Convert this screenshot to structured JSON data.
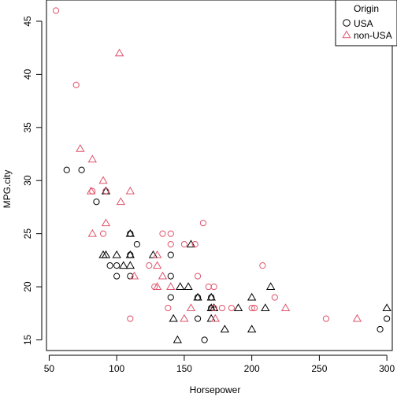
{
  "chart_data": {
    "type": "scatter",
    "title": "",
    "xlabel": "Horsepower",
    "ylabel": "MPG.city",
    "xlim": [
      48,
      304
    ],
    "ylim": [
      14,
      47
    ],
    "xticks": [
      50,
      100,
      150,
      200,
      250,
      300
    ],
    "yticks": [
      15,
      20,
      25,
      30,
      35,
      40,
      45
    ],
    "grid": false,
    "legend": {
      "title": "Origin",
      "placement": "top-right",
      "entries": [
        {
          "label": "USA",
          "marker": "circle",
          "color": "#000000"
        },
        {
          "label": "non-USA",
          "marker": "triangle",
          "color": "#DF536B"
        }
      ]
    },
    "series": [
      {
        "name": "USA",
        "color": "#000000",
        "points": [
          {
            "x": 63,
            "y": 31,
            "m": "circle"
          },
          {
            "x": 74,
            "y": 31,
            "m": "circle"
          },
          {
            "x": 85,
            "y": 28,
            "m": "circle"
          },
          {
            "x": 92,
            "y": 29,
            "m": "circle"
          },
          {
            "x": 92,
            "y": 29,
            "m": "triangle"
          },
          {
            "x": 90,
            "y": 23,
            "m": "triangle"
          },
          {
            "x": 92,
            "y": 23,
            "m": "triangle"
          },
          {
            "x": 95,
            "y": 22,
            "m": "circle"
          },
          {
            "x": 100,
            "y": 21,
            "m": "circle"
          },
          {
            "x": 100,
            "y": 22,
            "m": "circle"
          },
          {
            "x": 100,
            "y": 23,
            "m": "triangle"
          },
          {
            "x": 105,
            "y": 22,
            "m": "triangle"
          },
          {
            "x": 110,
            "y": 25,
            "m": "circle"
          },
          {
            "x": 110,
            "y": 25,
            "m": "triangle"
          },
          {
            "x": 110,
            "y": 23,
            "m": "circle"
          },
          {
            "x": 110,
            "y": 23,
            "m": "triangle"
          },
          {
            "x": 110,
            "y": 22,
            "m": "triangle"
          },
          {
            "x": 110,
            "y": 21,
            "m": "circle"
          },
          {
            "x": 115,
            "y": 24,
            "m": "circle"
          },
          {
            "x": 127,
            "y": 23,
            "m": "triangle"
          },
          {
            "x": 140,
            "y": 23,
            "m": "circle"
          },
          {
            "x": 140,
            "y": 21,
            "m": "circle"
          },
          {
            "x": 140,
            "y": 19,
            "m": "circle"
          },
          {
            "x": 142,
            "y": 17,
            "m": "triangle"
          },
          {
            "x": 145,
            "y": 15,
            "m": "triangle"
          },
          {
            "x": 147,
            "y": 20,
            "m": "triangle"
          },
          {
            "x": 153,
            "y": 20,
            "m": "triangle"
          },
          {
            "x": 155,
            "y": 24,
            "m": "triangle"
          },
          {
            "x": 160,
            "y": 19,
            "m": "triangle"
          },
          {
            "x": 160,
            "y": 19,
            "m": "circle"
          },
          {
            "x": 160,
            "y": 17,
            "m": "circle"
          },
          {
            "x": 165,
            "y": 15,
            "m": "circle"
          },
          {
            "x": 170,
            "y": 19,
            "m": "circle"
          },
          {
            "x": 170,
            "y": 19,
            "m": "triangle"
          },
          {
            "x": 170,
            "y": 18,
            "m": "triangle"
          },
          {
            "x": 170,
            "y": 18,
            "m": "circle"
          },
          {
            "x": 170,
            "y": 17,
            "m": "triangle"
          },
          {
            "x": 172,
            "y": 18,
            "m": "triangle"
          },
          {
            "x": 180,
            "y": 16,
            "m": "triangle"
          },
          {
            "x": 190,
            "y": 18,
            "m": "triangle"
          },
          {
            "x": 200,
            "y": 19,
            "m": "triangle"
          },
          {
            "x": 200,
            "y": 16,
            "m": "triangle"
          },
          {
            "x": 210,
            "y": 18,
            "m": "triangle"
          },
          {
            "x": 214,
            "y": 20,
            "m": "triangle"
          },
          {
            "x": 295,
            "y": 16,
            "m": "circle"
          },
          {
            "x": 300,
            "y": 17,
            "m": "circle"
          },
          {
            "x": 300,
            "y": 18,
            "m": "triangle"
          }
        ]
      },
      {
        "name": "non-USA",
        "color": "#DF536B",
        "points": [
          {
            "x": 55,
            "y": 46,
            "m": "circle"
          },
          {
            "x": 70,
            "y": 39,
            "m": "circle"
          },
          {
            "x": 102,
            "y": 42,
            "m": "triangle"
          },
          {
            "x": 73,
            "y": 33,
            "m": "triangle"
          },
          {
            "x": 82,
            "y": 32,
            "m": "triangle"
          },
          {
            "x": 82,
            "y": 29,
            "m": "circle"
          },
          {
            "x": 81,
            "y": 29,
            "m": "triangle"
          },
          {
            "x": 82,
            "y": 25,
            "m": "triangle"
          },
          {
            "x": 90,
            "y": 30,
            "m": "triangle"
          },
          {
            "x": 92,
            "y": 29,
            "m": "circle"
          },
          {
            "x": 92,
            "y": 26,
            "m": "triangle"
          },
          {
            "x": 90,
            "y": 25,
            "m": "circle"
          },
          {
            "x": 103,
            "y": 28,
            "m": "triangle"
          },
          {
            "x": 110,
            "y": 29,
            "m": "triangle"
          },
          {
            "x": 110,
            "y": 17,
            "m": "circle"
          },
          {
            "x": 113,
            "y": 21,
            "m": "triangle"
          },
          {
            "x": 124,
            "y": 22,
            "m": "circle"
          },
          {
            "x": 128,
            "y": 20,
            "m": "circle"
          },
          {
            "x": 130,
            "y": 23,
            "m": "triangle"
          },
          {
            "x": 130,
            "y": 20,
            "m": "triangle"
          },
          {
            "x": 130,
            "y": 22,
            "m": "triangle"
          },
          {
            "x": 134,
            "y": 25,
            "m": "circle"
          },
          {
            "x": 134,
            "y": 21,
            "m": "triangle"
          },
          {
            "x": 138,
            "y": 18,
            "m": "circle"
          },
          {
            "x": 140,
            "y": 25,
            "m": "circle"
          },
          {
            "x": 140,
            "y": 24,
            "m": "circle"
          },
          {
            "x": 140,
            "y": 20,
            "m": "triangle"
          },
          {
            "x": 150,
            "y": 24,
            "m": "circle"
          },
          {
            "x": 150,
            "y": 17,
            "m": "triangle"
          },
          {
            "x": 155,
            "y": 18,
            "m": "triangle"
          },
          {
            "x": 158,
            "y": 24,
            "m": "circle"
          },
          {
            "x": 160,
            "y": 21,
            "m": "circle"
          },
          {
            "x": 164,
            "y": 26,
            "m": "circle"
          },
          {
            "x": 168,
            "y": 20,
            "m": "circle"
          },
          {
            "x": 172,
            "y": 20,
            "m": "circle"
          },
          {
            "x": 172,
            "y": 18,
            "m": "circle"
          },
          {
            "x": 173,
            "y": 17,
            "m": "triangle"
          },
          {
            "x": 178,
            "y": 18,
            "m": "circle"
          },
          {
            "x": 185,
            "y": 18,
            "m": "circle"
          },
          {
            "x": 200,
            "y": 18,
            "m": "circle"
          },
          {
            "x": 202,
            "y": 18,
            "m": "circle"
          },
          {
            "x": 208,
            "y": 22,
            "m": "circle"
          },
          {
            "x": 217,
            "y": 19,
            "m": "circle"
          },
          {
            "x": 225,
            "y": 18,
            "m": "triangle"
          },
          {
            "x": 255,
            "y": 17,
            "m": "circle"
          },
          {
            "x": 278,
            "y": 17,
            "m": "triangle"
          }
        ]
      }
    ]
  }
}
